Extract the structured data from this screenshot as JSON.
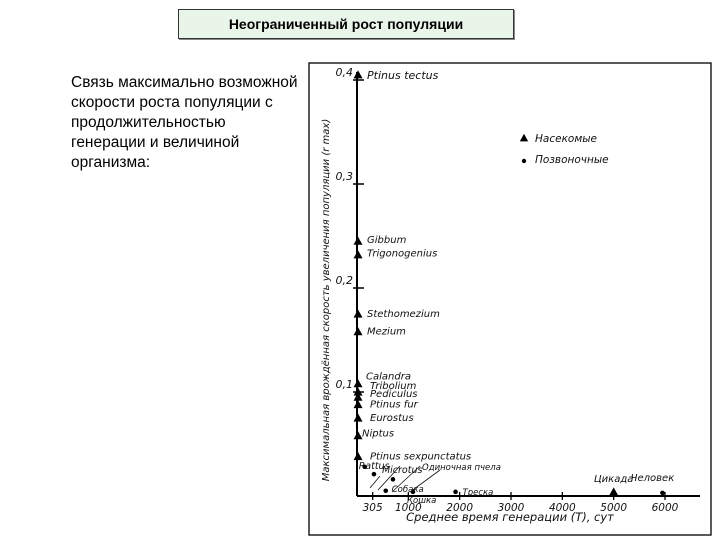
{
  "title": "Неограниченный рост популяции",
  "description": "Связь максимально возможной скорости роста популяции с продолжительностью генерации и величиной организма:",
  "chart_data": {
    "type": "scatter",
    "xlabel": "Среднее время генерации (T), сут",
    "ylabel": "Максимальная врождённая скорость увеличения популяции (r max)",
    "xlim": [
      0,
      6200
    ],
    "ylim": [
      0,
      0.42
    ],
    "x_ticks": [
      "305",
      "1000",
      "2000",
      "3000",
      "4000",
      "5000",
      "6000"
    ],
    "x_tick_values": [
      305,
      1000,
      2000,
      3000,
      4000,
      5000,
      6000
    ],
    "y_ticks": [
      "0,1",
      "0,2",
      "0,3",
      "0,4"
    ],
    "y_tick_values": [
      0.1,
      0.2,
      0.3,
      0.4
    ],
    "legend": {
      "position": "top-right",
      "entries": [
        {
          "label": "Насекомые",
          "marker": "triangle"
        },
        {
          "label": "Позвоночные",
          "marker": "dot"
        }
      ]
    },
    "series": [
      {
        "name": "Насекомые",
        "marker": "triangle",
        "points": [
          {
            "label": "Ptinus tectus",
            "x": 20,
            "y": 0.405
          },
          {
            "label": "Gibbum",
            "x": 20,
            "y": 0.245
          },
          {
            "label": "Trigonogenius",
            "x": 20,
            "y": 0.232
          },
          {
            "label": "Stethomezium",
            "x": 20,
            "y": 0.175
          },
          {
            "label": "Mezium",
            "x": 20,
            "y": 0.158
          },
          {
            "label": "Calandra",
            "x": 20,
            "y": 0.108
          },
          {
            "label": "Tribolium",
            "x": 20,
            "y": 0.1
          },
          {
            "label": "Pediculus",
            "x": 20,
            "y": 0.095
          },
          {
            "label": "Ptinus fur",
            "x": 20,
            "y": 0.088
          },
          {
            "label": "Eurostus",
            "x": 20,
            "y": 0.075
          },
          {
            "label": "Niptus",
            "x": 20,
            "y": 0.058
          },
          {
            "label": "Ptinus sexpunctatus",
            "x": 20,
            "y": 0.038
          },
          {
            "label": "Цикада",
            "x": 5000,
            "y": 0.004
          }
        ]
      },
      {
        "name": "Позвоночные",
        "marker": "dot",
        "points": [
          {
            "label": "Rattus",
            "x": 150,
            "y": 0.028
          },
          {
            "label": "Microtus",
            "x": 330,
            "y": 0.021
          },
          {
            "label": "Одиночная пчела",
            "x": 700,
            "y": 0.016
          },
          {
            "label": "Собака",
            "x": 560,
            "y": 0.005
          },
          {
            "label": "Кошка",
            "x": 1090,
            "y": 0.004
          },
          {
            "label": "Треска",
            "x": 1920,
            "y": 0.004
          },
          {
            "label": "Человек",
            "x": 5950,
            "y": 0.003
          }
        ]
      }
    ]
  }
}
